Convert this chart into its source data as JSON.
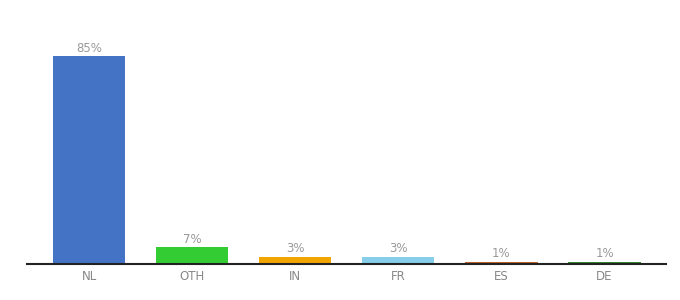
{
  "categories": [
    "NL",
    "OTH",
    "IN",
    "FR",
    "ES",
    "DE"
  ],
  "values": [
    85,
    7,
    3,
    3,
    1,
    1
  ],
  "labels": [
    "85%",
    "7%",
    "3%",
    "3%",
    "1%",
    "1%"
  ],
  "bar_colors": [
    "#4472C4",
    "#33CC33",
    "#F0A500",
    "#87CEEB",
    "#C0622B",
    "#2E8B2E"
  ],
  "background_color": "#ffffff",
  "label_color": "#999999",
  "label_fontsize": 8.5,
  "tick_fontsize": 8.5,
  "tick_color": "#888888",
  "figsize": [
    6.8,
    3.0
  ],
  "dpi": 100,
  "ylim": [
    0,
    98
  ],
  "bar_width": 0.7
}
